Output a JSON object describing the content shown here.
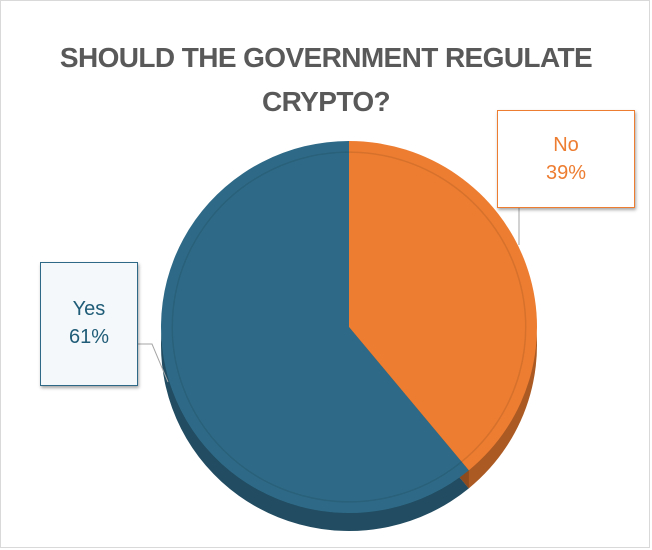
{
  "chart_data": {
    "type": "pie",
    "title": "SHOULD THE GOVERNMENT REGULATE CRYPTO?",
    "title_lines": [
      "SHOULD THE GOVERNMENT REGULATE",
      "CRYPTO?"
    ],
    "slices": [
      {
        "label": "No",
        "value": 39,
        "display": "39%",
        "color": "#ED7D31",
        "text_color": "#ED7D31",
        "box_fill": "#FFFFFF",
        "border": "#ED7D31"
      },
      {
        "label": "Yes",
        "value": 61,
        "display": "61%",
        "color": "#2E6A87",
        "text_color": "#1F5C77",
        "box_fill": "#F4F8FA",
        "border": "#2E6A87"
      }
    ],
    "start_angle_deg": 0,
    "direction": "clockwise",
    "style": "3d-pie"
  }
}
